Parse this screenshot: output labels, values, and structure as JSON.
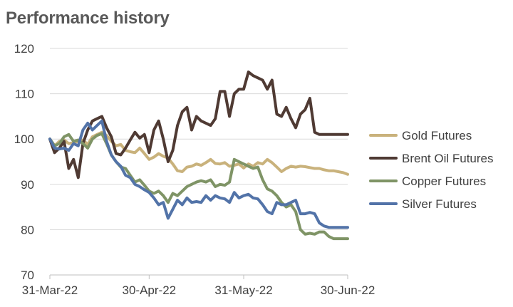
{
  "header": {
    "title": "Performance history"
  },
  "chart_data": {
    "type": "line",
    "title": "Performance history",
    "xlabel": "",
    "ylabel": "",
    "ylim": [
      70,
      120
    ],
    "yticks": [
      "70",
      "80",
      "90",
      "100",
      "110",
      "120"
    ],
    "xticks": [
      "31-Mar-22",
      "30-Apr-22",
      "31-May-22",
      "30-Jun-22"
    ],
    "x": [
      "31-Mar",
      "1-Apr",
      "4-Apr",
      "5-Apr",
      "6-Apr",
      "7-Apr",
      "8-Apr",
      "11-Apr",
      "12-Apr",
      "13-Apr",
      "14-Apr",
      "18-Apr",
      "19-Apr",
      "20-Apr",
      "21-Apr",
      "22-Apr",
      "25-Apr",
      "26-Apr",
      "27-Apr",
      "28-Apr",
      "29-Apr",
      "2-May",
      "3-May",
      "4-May",
      "5-May",
      "6-May",
      "9-May",
      "10-May",
      "11-May",
      "12-May",
      "13-May",
      "16-May",
      "17-May",
      "18-May",
      "19-May",
      "20-May",
      "23-May",
      "24-May",
      "25-May",
      "26-May",
      "27-May",
      "31-May",
      "1-Jun",
      "2-Jun",
      "3-Jun",
      "6-Jun",
      "7-Jun",
      "8-Jun",
      "9-Jun",
      "10-Jun",
      "13-Jun",
      "14-Jun",
      "15-Jun",
      "16-Jun",
      "17-Jun",
      "20-Jun",
      "21-Jun",
      "22-Jun",
      "23-Jun",
      "24-Jun",
      "27-Jun",
      "28-Jun",
      "29-Jun",
      "30-Jun"
    ],
    "grid": true,
    "legend_position": "right",
    "series": [
      {
        "name": "Gold Futures",
        "color": "#C9B27C",
        "values": [
          100,
          98.5,
          99.5,
          99.8,
          99.0,
          99.2,
          99.5,
          99.8,
          98.8,
          100.5,
          101.0,
          101.5,
          100.8,
          99.5,
          98.5,
          98.8,
          97.5,
          97.2,
          97.0,
          98.0,
          96.8,
          95.5,
          96.0,
          96.8,
          96.2,
          95.8,
          94.5,
          93.0,
          92.8,
          93.8,
          94.0,
          94.5,
          94.2,
          94.8,
          95.5,
          94.6,
          94.5,
          94.8,
          94.0,
          94.2,
          94.5,
          93.6,
          94.5,
          94.0,
          94.8,
          94.5,
          95.5,
          94.8,
          93.8,
          92.8,
          93.5,
          94.0,
          93.8,
          94.0,
          93.9,
          93.7,
          93.5,
          93.5,
          93.2,
          93.0,
          93.0,
          92.8,
          92.6,
          92.2
        ]
      },
      {
        "name": "Brent Oil Futures",
        "color": "#4F3A33",
        "values": [
          100,
          97.0,
          98.0,
          99.5,
          93.5,
          95.5,
          91.5,
          99.0,
          102.0,
          104.0,
          104.5,
          105.0,
          102.5,
          100.5,
          96.8,
          96.5,
          98.0,
          99.8,
          101.5,
          100.2,
          101.0,
          97.0,
          102.0,
          104.0,
          100.0,
          95.0,
          97.5,
          103.0,
          106.0,
          107.0,
          102.0,
          105.0,
          104.0,
          103.5,
          103.0,
          104.5,
          110.5,
          110.5,
          105.0,
          110.0,
          111.0,
          111.0,
          114.8,
          114.0,
          113.5,
          113.0,
          111.0,
          113.0,
          105.5,
          105.0,
          107.0,
          104.5,
          102.5,
          105.5,
          106.5,
          109.0,
          101.5,
          101.0,
          101.0,
          101.0,
          101.0,
          101.0,
          101.0,
          101.0
        ]
      },
      {
        "name": "Copper Futures",
        "color": "#7F9466",
        "values": [
          100,
          98.5,
          99.0,
          100.5,
          101.0,
          99.5,
          99.8,
          99.0,
          98.0,
          100.0,
          100.8,
          101.2,
          99.0,
          96.5,
          95.0,
          93.8,
          93.5,
          92.0,
          90.5,
          91.0,
          89.8,
          88.5,
          88.0,
          88.5,
          87.5,
          86.0,
          88.0,
          87.5,
          88.5,
          89.5,
          90.0,
          90.5,
          90.8,
          90.5,
          91.0,
          89.5,
          90.0,
          89.8,
          90.5,
          95.5,
          95.0,
          94.5,
          94.0,
          93.5,
          93.8,
          91.0,
          89.0,
          88.5,
          87.5,
          86.0,
          85.0,
          85.5,
          84.0,
          80.0,
          79.0,
          79.2,
          79.0,
          79.5,
          79.5,
          78.5,
          78.0,
          78.0,
          78.0,
          78.0
        ]
      },
      {
        "name": "Silver Futures",
        "color": "#5273A8",
        "values": [
          100,
          98.0,
          97.8,
          98.0,
          97.5,
          99.0,
          98.5,
          102.0,
          103.5,
          102.0,
          103.0,
          104.0,
          99.5,
          96.5,
          95.0,
          94.0,
          92.0,
          91.5,
          90.0,
          89.5,
          88.8,
          88.2,
          87.0,
          85.5,
          86.0,
          82.5,
          84.5,
          86.5,
          85.5,
          87.0,
          86.0,
          86.2,
          86.0,
          87.5,
          86.5,
          87.5,
          87.0,
          86.8,
          86.0,
          88.2,
          87.0,
          87.5,
          87.8,
          87.0,
          86.8,
          85.5,
          84.0,
          83.5,
          86.0,
          85.5,
          85.5,
          86.0,
          86.5,
          83.5,
          83.5,
          83.8,
          83.5,
          81.5,
          80.8,
          80.5,
          80.5,
          80.5,
          80.5,
          80.5
        ]
      }
    ]
  }
}
